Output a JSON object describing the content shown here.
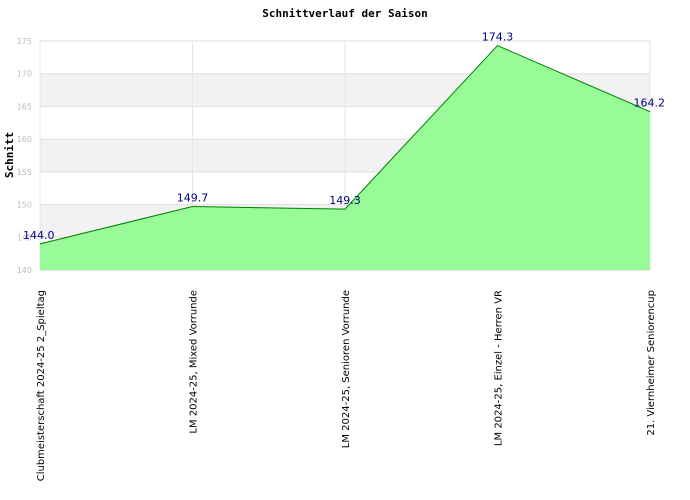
{
  "chart_data": {
    "type": "area",
    "title": "Schnittverlauf der Saison",
    "ylabel": "Schnitt",
    "xlabel": "",
    "categories": [
      "Clubmeisterschaft 2024-25  2_Spieltag",
      "LM 2024-25, Mixed Vorrunde",
      "LM 2024-25, Senioren Vorrunde",
      "LM 2024-25, Einzel - Herren VR",
      "21. Viernheimer Seniorencup"
    ],
    "values": [
      144.0,
      149.7,
      149.3,
      174.3,
      164.2
    ],
    "value_labels": [
      "144.0",
      "149.7",
      "149.3",
      "174.3",
      "164.2"
    ],
    "yticks": [
      "140",
      "145",
      "150",
      "155",
      "160",
      "165",
      "170",
      "175"
    ],
    "ylim": [
      140,
      175
    ],
    "grid": true,
    "fill_color": "#98fb98",
    "line_color": "#008000",
    "band_color": "#f2f2f2",
    "label_color": "#000080"
  }
}
